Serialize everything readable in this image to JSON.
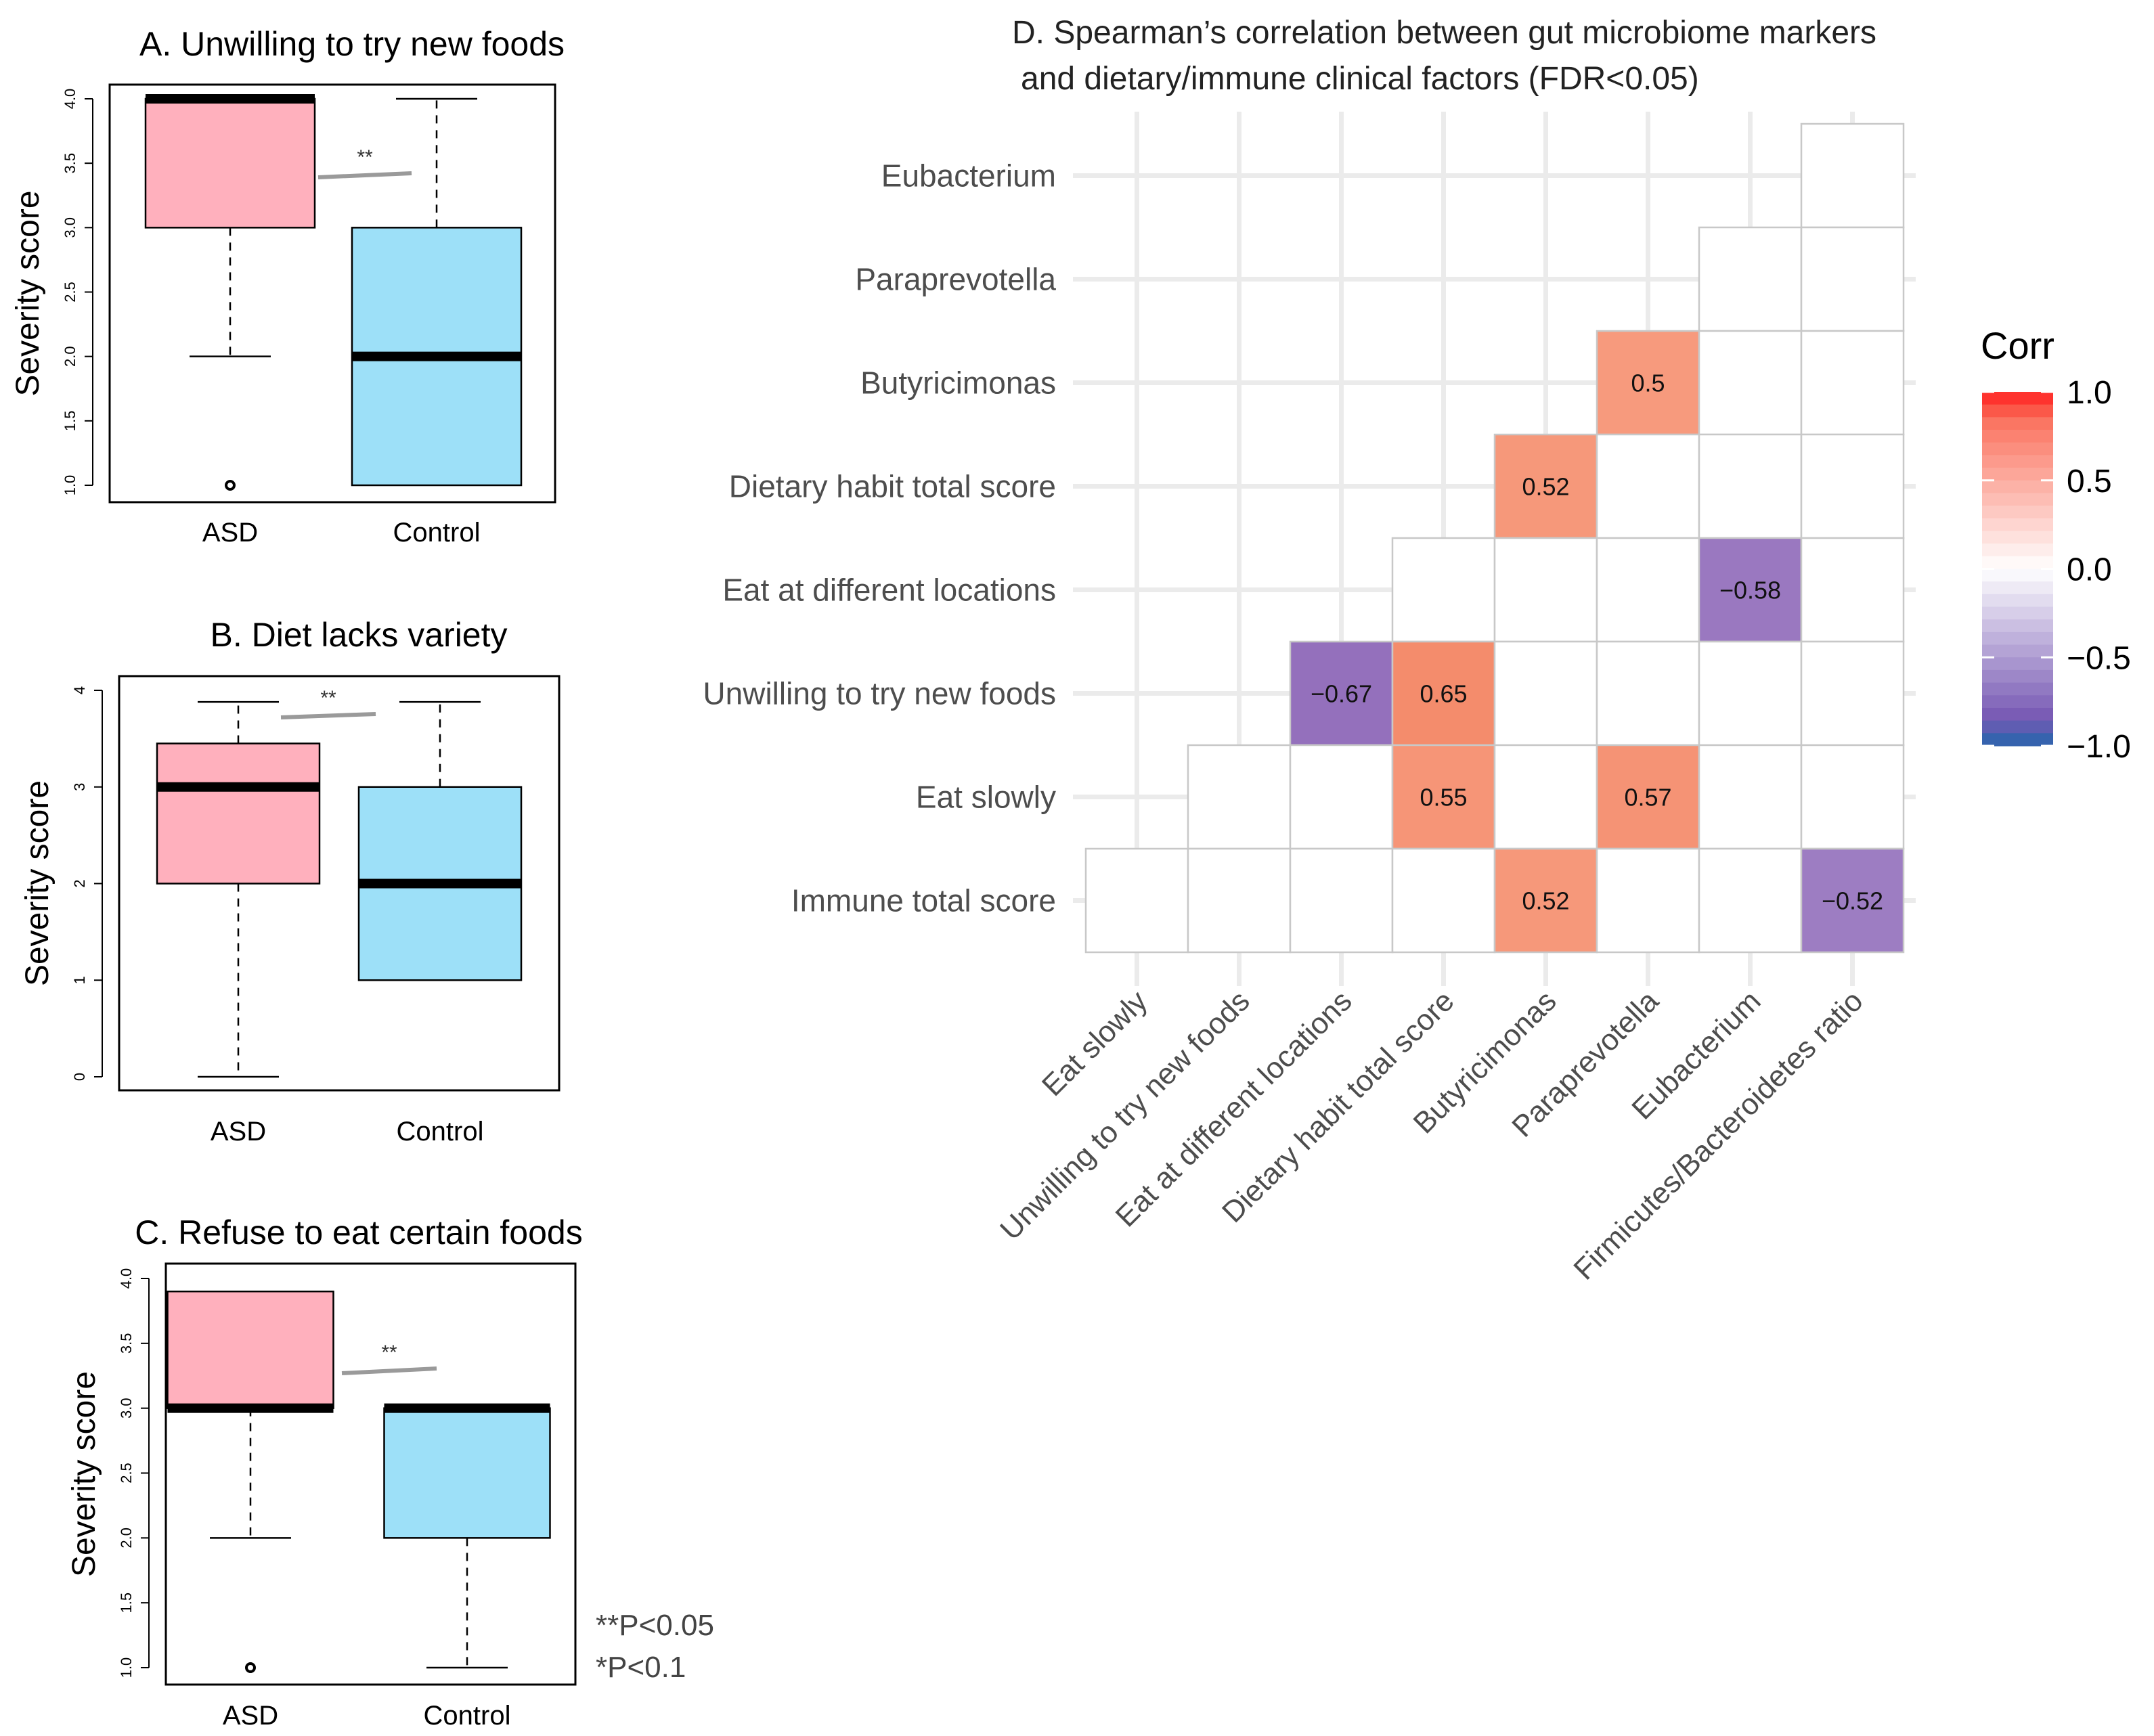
{
  "chart_data": [
    {
      "type": "box",
      "title": "A. Unwilling to try new foods",
      "ylabel": "Severity score",
      "ylim": [
        1,
        4
      ],
      "yticks": [
        "1.0",
        "1.5",
        "2.0",
        "2.5",
        "3.0",
        "3.5",
        "4.0"
      ],
      "significance": "**",
      "groups": [
        {
          "name": "ASD",
          "min": 2.0,
          "q1": 3.0,
          "median": 4.0,
          "q3": 4.0,
          "max": 4.0,
          "outliers": [
            1.0
          ],
          "color": "#ffb0bd"
        },
        {
          "name": "Control",
          "min": 1.0,
          "q1": 1.0,
          "median": 2.0,
          "q3": 3.0,
          "max": 4.0,
          "outliers": [],
          "color": "#9de0f8"
        }
      ]
    },
    {
      "type": "box",
      "title": "B. Diet lacks variety",
      "ylabel": "Severity score",
      "ylim": [
        0,
        4
      ],
      "yticks": [
        "0",
        "1",
        "2",
        "3",
        "4"
      ],
      "significance": "**",
      "groups": [
        {
          "name": "ASD",
          "min": 0.0,
          "q1": 2.0,
          "median": 3.0,
          "q3": 3.45,
          "max": 3.88,
          "outliers": [],
          "color": "#ffb0bd"
        },
        {
          "name": "Control",
          "min": 1.0,
          "q1": 1.0,
          "median": 2.0,
          "q3": 3.0,
          "max": 3.88,
          "outliers": [],
          "color": "#9de0f8"
        }
      ]
    },
    {
      "type": "box",
      "title": "C. Refuse to eat certain foods",
      "ylabel": "Severity score",
      "ylim": [
        1,
        4
      ],
      "yticks": [
        "1.0",
        "1.5",
        "2.0",
        "2.5",
        "3.0",
        "3.5",
        "4.0"
      ],
      "significance": "**",
      "groups": [
        {
          "name": "ASD",
          "min": 2.0,
          "q1": 3.0,
          "median": 3.0,
          "q3": 3.9,
          "max": 3.9,
          "outliers": [
            1.0
          ],
          "color": "#ffb0bd"
        },
        {
          "name": "Control",
          "min": 1.0,
          "q1": 2.0,
          "median": 3.0,
          "q3": 3.0,
          "max": 3.0,
          "outliers": [],
          "color": "#9de0f8"
        }
      ]
    },
    {
      "type": "heatmap",
      "title_line1": "D. Spearman’s correlation between gut microbiome markers",
      "title_line2": "and dietary/immune clinical factors (FDR<0.05)",
      "rows": [
        "Eubacterium",
        "Paraprevotella",
        "Butyricimonas",
        "Dietary habit total score",
        "Eat at different locations",
        "Unwilling to try new foods",
        "Eat slowly",
        "Immune total score"
      ],
      "columns": [
        "Eat slowly",
        "Unwilling to try new foods",
        "Eat at different locations",
        "Dietary habit  total score",
        "Butyricimonas",
        "Paraprevotella",
        "Eubacterium",
        "Firmicutes/Bacteroidetes ratio"
      ],
      "row_start_col": [
        7,
        6,
        5,
        4,
        3,
        2,
        1,
        0
      ],
      "cells": [
        {
          "row": 2,
          "col": 5,
          "value": 0.5,
          "label": "0.5"
        },
        {
          "row": 3,
          "col": 4,
          "value": 0.52,
          "label": "0.52"
        },
        {
          "row": 4,
          "col": 6,
          "value": -0.58,
          "label": "−0.58"
        },
        {
          "row": 5,
          "col": 2,
          "value": -0.67,
          "label": "−0.67"
        },
        {
          "row": 5,
          "col": 3,
          "value": 0.65,
          "label": "0.65"
        },
        {
          "row": 6,
          "col": 3,
          "value": 0.55,
          "label": "0.55"
        },
        {
          "row": 6,
          "col": 5,
          "value": 0.57,
          "label": "0.57"
        },
        {
          "row": 7,
          "col": 4,
          "value": 0.52,
          "label": "0.52"
        },
        {
          "row": 7,
          "col": 7,
          "value": -0.52,
          "label": "−0.52"
        }
      ],
      "legend": {
        "title": "Corr",
        "range": [
          -1,
          1
        ],
        "ticks": [
          {
            "value": 1.0,
            "label": "1.0"
          },
          {
            "value": 0.5,
            "label": "0.5"
          },
          {
            "value": 0.0,
            "label": "0.0"
          },
          {
            "value": -0.5,
            "label": "−0.5"
          },
          {
            "value": -1.0,
            "label": "−1.0"
          }
        ],
        "colors": {
          "neg": "#2166ac",
          "mid": "#ffffff",
          "pos": "#ff2020"
        }
      }
    }
  ],
  "notes": {
    "line1": "**P<0.05",
    "line2": "*P<0.1"
  }
}
